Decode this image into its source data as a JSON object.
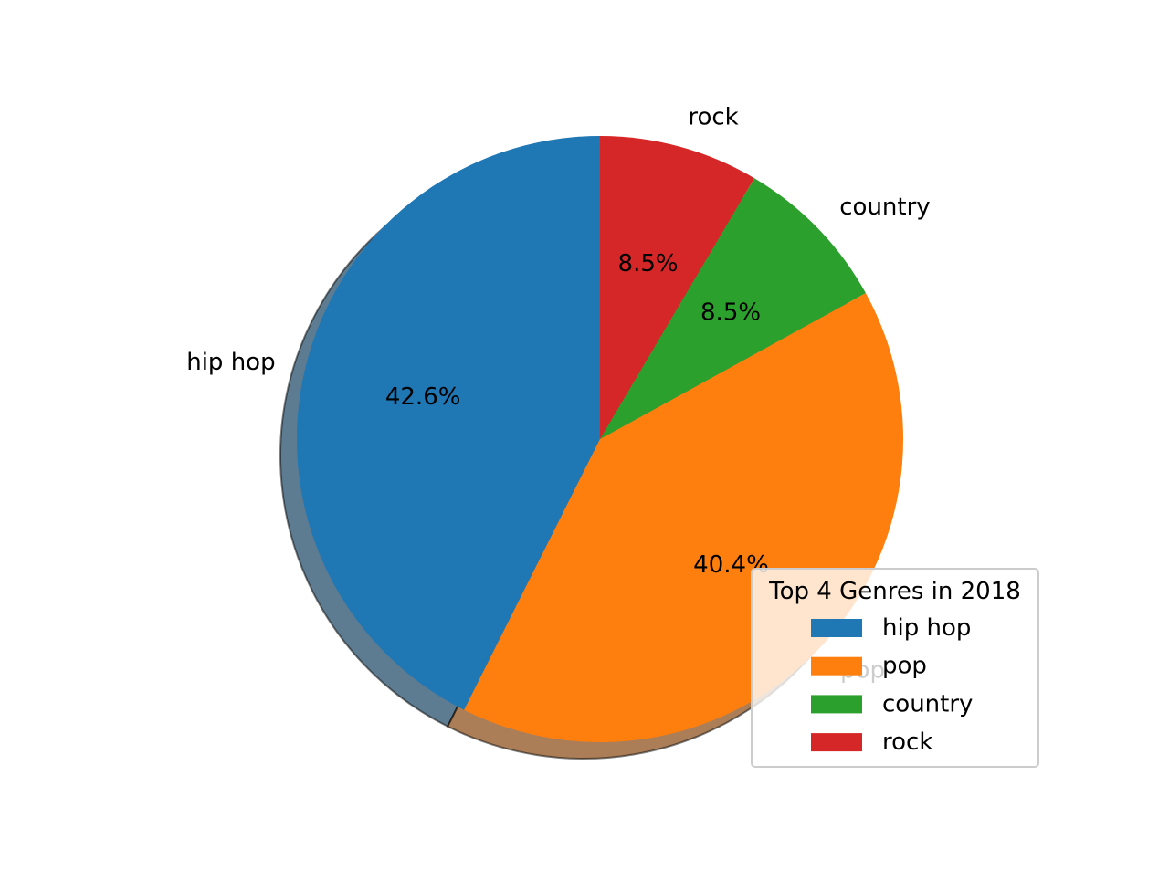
{
  "chart_data": {
    "type": "pie",
    "slices": [
      {
        "label": "hip hop",
        "value": 42.6,
        "pct_label": "42.6%",
        "color": "#1f77b4"
      },
      {
        "label": "pop",
        "value": 40.4,
        "pct_label": "40.4%",
        "color": "#ff7f0e"
      },
      {
        "label": "country",
        "value": 8.5,
        "pct_label": "8.5%",
        "color": "#2ca02c"
      },
      {
        "label": "rock",
        "value": 8.5,
        "pct_label": "8.5%",
        "color": "#d62728"
      }
    ],
    "start_angle_deg": 90,
    "direction": "counterclockwise",
    "shadow": true,
    "legend": {
      "title": "Top 4 Genres in 2018",
      "placement": "lower-right",
      "entries": [
        "hip hop",
        "pop",
        "country",
        "rock"
      ]
    }
  }
}
